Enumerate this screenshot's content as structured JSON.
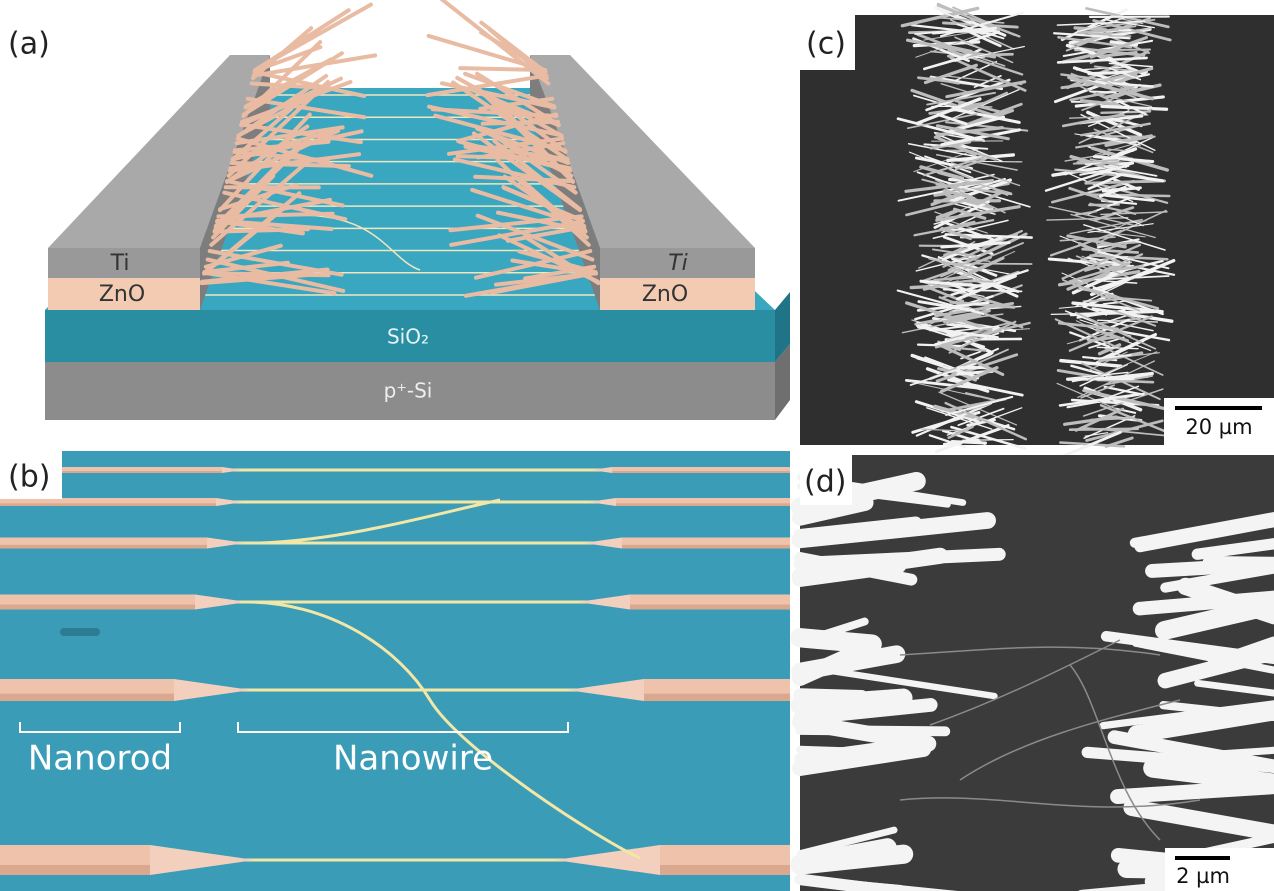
{
  "panel_a": {
    "label": "(a)",
    "ti_left": "Ti",
    "ti_right": "Ti",
    "zno_left": "ZnO",
    "zno_right": "ZnO",
    "sio2": "SiO₂",
    "si": "p⁺-Si"
  },
  "panel_b": {
    "label": "(b)",
    "nanorod": "Nanorod",
    "nanowire": "Nanowire"
  },
  "panel_c": {
    "label": "(c)",
    "scale_bar": "20 µm"
  },
  "panel_d": {
    "label": "(d)",
    "scale_bar": "2 µm"
  }
}
